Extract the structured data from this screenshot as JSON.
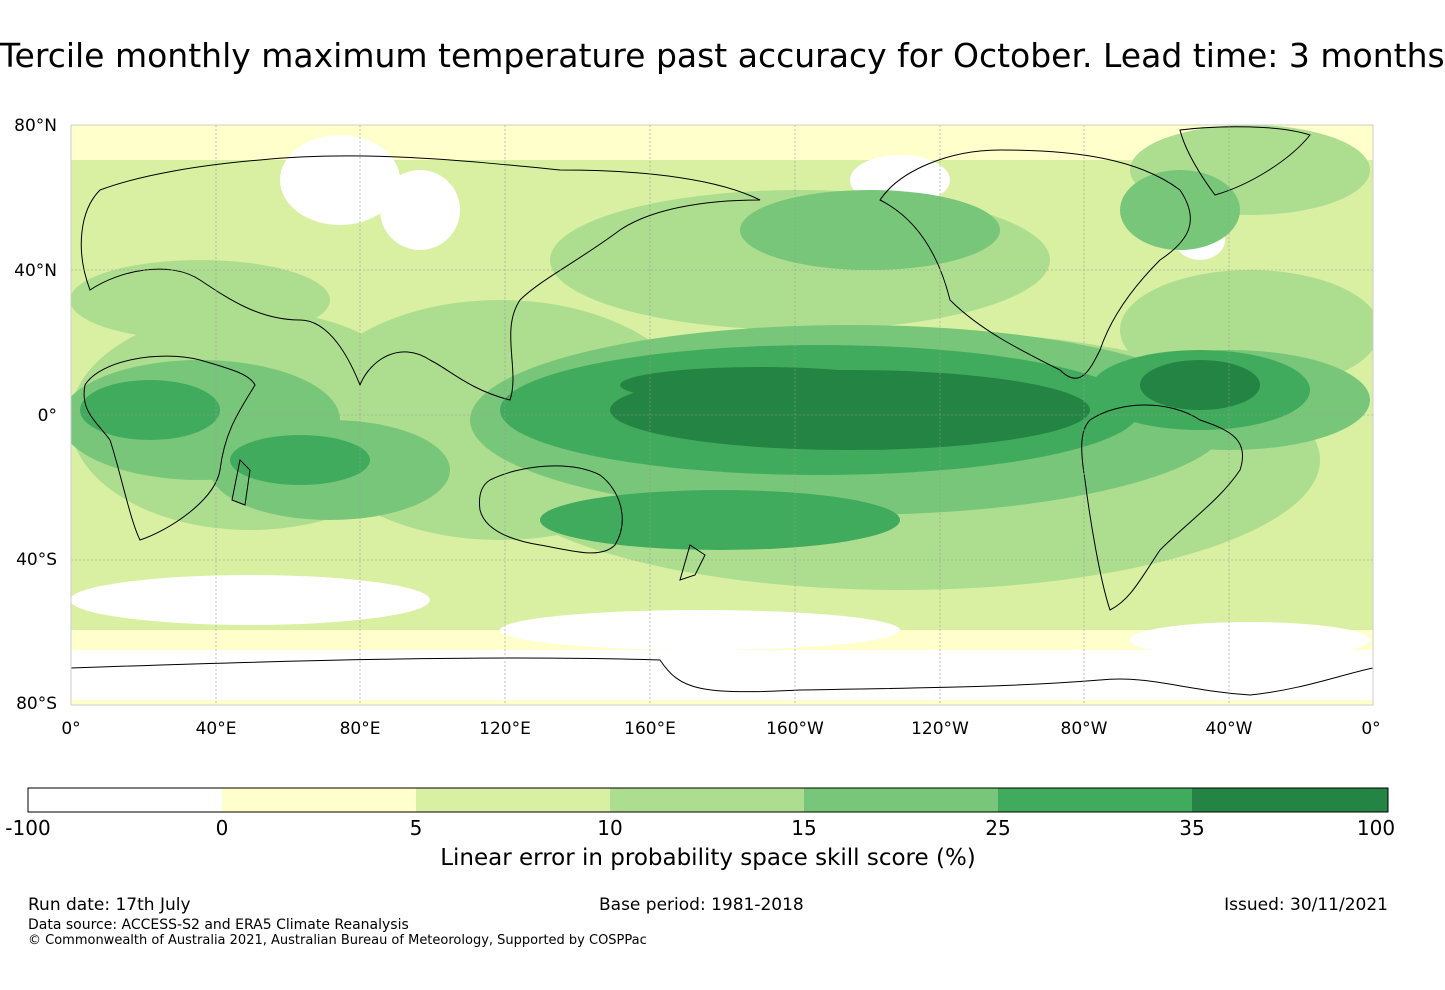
{
  "title": "Tercile monthly maximum temperature past accuracy for October. Lead time: 3 months",
  "map": {
    "lat_labels": [
      "80°N",
      "40°N",
      "0°",
      "40°S",
      "80°S"
    ],
    "lon_labels": [
      "0°",
      "40°E",
      "80°E",
      "120°E",
      "160°E",
      "160°W",
      "120°W",
      "80°W",
      "40°W",
      "0°"
    ]
  },
  "colorbar": {
    "ticks": [
      "-100",
      "0",
      "5",
      "10",
      "15",
      "25",
      "35",
      "100"
    ],
    "colors": [
      "#ffffff",
      "#ffffcc",
      "#d9f0a3",
      "#addd8e",
      "#78c679",
      "#41ab5d",
      "#238443"
    ],
    "label": "Linear error in probability space skill score (%)"
  },
  "footer": {
    "run_date": "Run date: 17th July",
    "base_period": "Base period: 1981-2018",
    "issued": "Issued: 30/11/2021",
    "data_source": "Data source: ACCESS-S2 and ERA5 Climate Reanalysis",
    "copyright": "© Commonwealth of Australia 2021, Australian Bureau of Meteorology, Supported by COSPPac"
  }
}
